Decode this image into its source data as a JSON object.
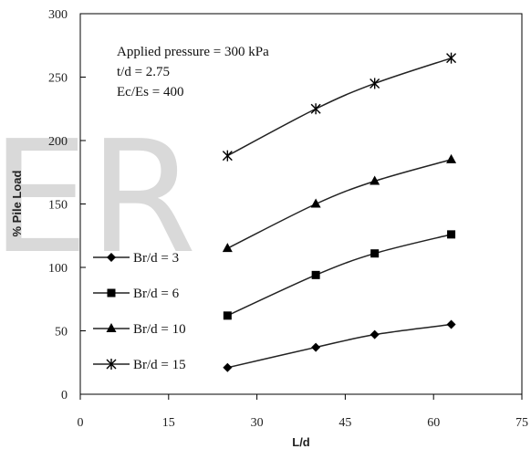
{
  "watermark": "ER",
  "chart_data": {
    "type": "line",
    "xlabel": "L/d",
    "ylabel": "% Pile Load",
    "xlim": [
      0,
      75
    ],
    "ylim": [
      0,
      300
    ],
    "xticks": [
      "0",
      "15",
      "30",
      "45",
      "60",
      "75"
    ],
    "yticks": [
      "0",
      "50",
      "100",
      "150",
      "200",
      "250",
      "300"
    ],
    "grid": false,
    "legend_position": "bottom-left",
    "annotations": [
      "Applied pressure = 300 kPa",
      "t/d = 2.75",
      "Ec/Es = 400"
    ],
    "x": [
      25,
      40,
      50,
      63
    ],
    "series": [
      {
        "name": "Br/d = 3",
        "marker": "diamond",
        "values": [
          21,
          37,
          47,
          55
        ]
      },
      {
        "name": "Br/d = 6",
        "marker": "square",
        "values": [
          62,
          94,
          111,
          126
        ]
      },
      {
        "name": "Br/d = 10",
        "marker": "triangle",
        "values": [
          115,
          150,
          168,
          185
        ]
      },
      {
        "name": "Br/d = 15",
        "marker": "asterisk",
        "values": [
          188,
          225,
          245,
          265
        ]
      }
    ]
  }
}
